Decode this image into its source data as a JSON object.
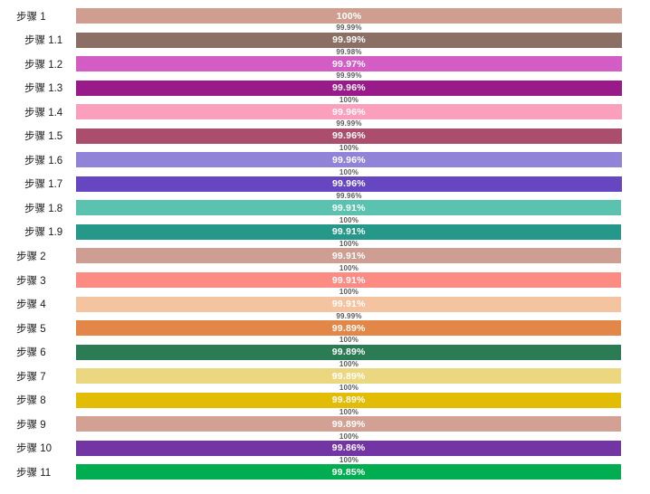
{
  "page": {
    "background_color": "#ffffff",
    "title": ""
  },
  "chart_data": {
    "type": "bar",
    "orientation": "horizontal",
    "title": "",
    "xlabel": "",
    "ylabel": "",
    "xlim": [
      0,
      100
    ],
    "unit": "%",
    "grid": false,
    "legend": false,
    "label_colors": {
      "category": "#1a1a1a",
      "bar_value": "#ffffff",
      "gap_value": "#595959"
    },
    "categories": [
      "步骤 1",
      "步骤 1.1",
      "步骤 1.2",
      "步骤 1.3",
      "步骤 1.4",
      "步骤 1.5",
      "步骤 1.6",
      "步骤 1.7",
      "步骤 1.8",
      "步骤 1.9",
      "步骤 2",
      "步骤 3",
      "步骤 4",
      "步骤 5",
      "步骤 6",
      "步骤 7",
      "步骤 8",
      "步骤 9",
      "步骤 10",
      "步骤 11"
    ],
    "indents": [
      false,
      true,
      true,
      true,
      true,
      true,
      true,
      true,
      true,
      true,
      false,
      false,
      false,
      false,
      false,
      false,
      false,
      false,
      false,
      false
    ],
    "bar_colors": [
      "#d09e90",
      "#8c6f64",
      "#d45cc5",
      "#991b8a",
      "#faa0bd",
      "#ab4e6e",
      "#9184d8",
      "#6647c1",
      "#5ac2af",
      "#269889",
      "#cd9e91",
      "#fc8b84",
      "#f4c3a0",
      "#e28747",
      "#2b7b55",
      "#ebd780",
      "#e2bc05",
      "#d2a194",
      "#7334a4",
      "#00ad50"
    ],
    "series": [
      {
        "name": "bar-series-inside-labels",
        "label_position": "inside-center",
        "values": [
          100,
          99.99,
          99.97,
          99.96,
          99.96,
          99.96,
          99.96,
          99.96,
          99.91,
          99.91,
          99.91,
          99.91,
          99.91,
          99.89,
          99.89,
          99.89,
          99.89,
          99.89,
          99.86,
          99.85
        ],
        "labels": [
          "100%",
          "99.99%",
          "99.97%",
          "99.96%",
          "99.96%",
          "99.96%",
          "99.96%",
          "99.96%",
          "99.91%",
          "99.91%",
          "99.91%",
          "99.91%",
          "99.91%",
          "99.89%",
          "99.89%",
          "99.89%",
          "99.89%",
          "99.89%",
          "99.86%",
          "99.85%"
        ]
      },
      {
        "name": "secondary-series-between-bar-labels",
        "label_position": "between-bars",
        "values": [
          99.99,
          99.98,
          99.99,
          100,
          99.99,
          100,
          100,
          99.96,
          100,
          100,
          100,
          100,
          99.99,
          100,
          100,
          100,
          100,
          100,
          100
        ],
        "labels": [
          "99.99%",
          "99.98%",
          "99.99%",
          "100%",
          "99.99%",
          "100%",
          "100%",
          "99.96%",
          "100%",
          "100%",
          "100%",
          "100%",
          "99.99%",
          "100%",
          "100%",
          "100%",
          "100%",
          "100%",
          "100%"
        ]
      }
    ]
  }
}
